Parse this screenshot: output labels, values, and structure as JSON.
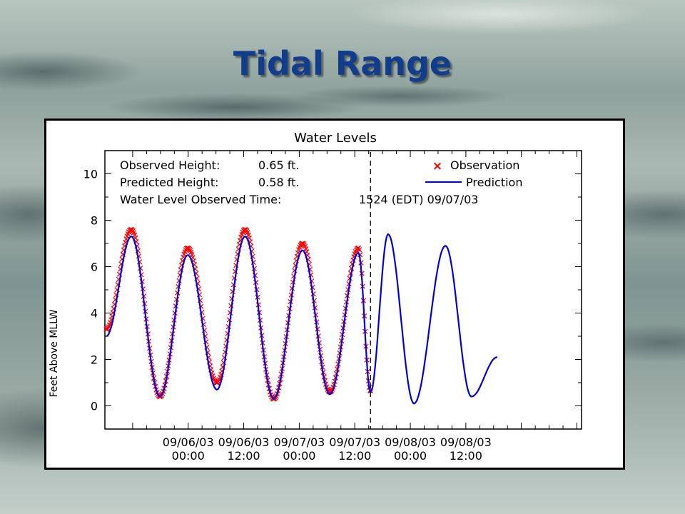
{
  "slide": {
    "title": "Tidal Range"
  },
  "chart_data": {
    "type": "line",
    "title": "Water Levels",
    "xlabel": "",
    "ylabel": "Feet Above MLLW",
    "ylim": [
      -1,
      11
    ],
    "yticks": [
      0,
      2,
      4,
      6,
      8,
      10
    ],
    "xlim_hours": [
      -18,
      85
    ],
    "xticks": [
      {
        "date": "09/06/03",
        "time": "00:00",
        "hour": 0
      },
      {
        "date": "09/06/03",
        "time": "12:00",
        "hour": 12
      },
      {
        "date": "09/07/03",
        "time": "00:00",
        "hour": 24
      },
      {
        "date": "09/07/03",
        "time": "12:00",
        "hour": 36
      },
      {
        "date": "09/08/03",
        "time": "00:00",
        "hour": 48
      },
      {
        "date": "09/08/03",
        "time": "12:00",
        "hour": 60
      }
    ],
    "grid": false,
    "legend_placement": "top-right",
    "info_lines": [
      {
        "label": "Observed Height:",
        "value": "0.65 ft."
      },
      {
        "label": "Predicted Height:",
        "value": "0.58 ft."
      },
      {
        "label": "Water Level Observed Time:",
        "value": "1524 (EDT) 09/07/03"
      }
    ],
    "current_time_hour": 39.4,
    "series": [
      {
        "name": "Observation",
        "marker": "x",
        "color": "#ff0000",
        "x": [
          -17.7,
          -12.3,
          -6.1,
          -0.1,
          6.2,
          12.3,
          18.5,
          24.7,
          30.6,
          36.8,
          39.4
        ],
        "y": [
          3.3,
          7.6,
          0.4,
          6.8,
          1.0,
          7.6,
          0.3,
          7.0,
          0.6,
          6.8,
          0.65
        ]
      },
      {
        "name": "Prediction",
        "marker": "line",
        "color": "#0000dd",
        "x": [
          -17.7,
          -12.3,
          -6.1,
          -0.1,
          6.2,
          12.3,
          18.5,
          24.7,
          30.6,
          36.8,
          39.4,
          43.2,
          48.8,
          55.6,
          61.2,
          66.8
        ],
        "y": [
          3.0,
          7.3,
          0.4,
          6.5,
          0.7,
          7.3,
          0.3,
          6.7,
          0.5,
          6.6,
          0.58,
          7.4,
          0.1,
          6.9,
          0.4,
          2.1
        ]
      }
    ]
  },
  "colors": {
    "title": "#123c8c",
    "observation": "#ff0000",
    "prediction": "#0000dd"
  }
}
